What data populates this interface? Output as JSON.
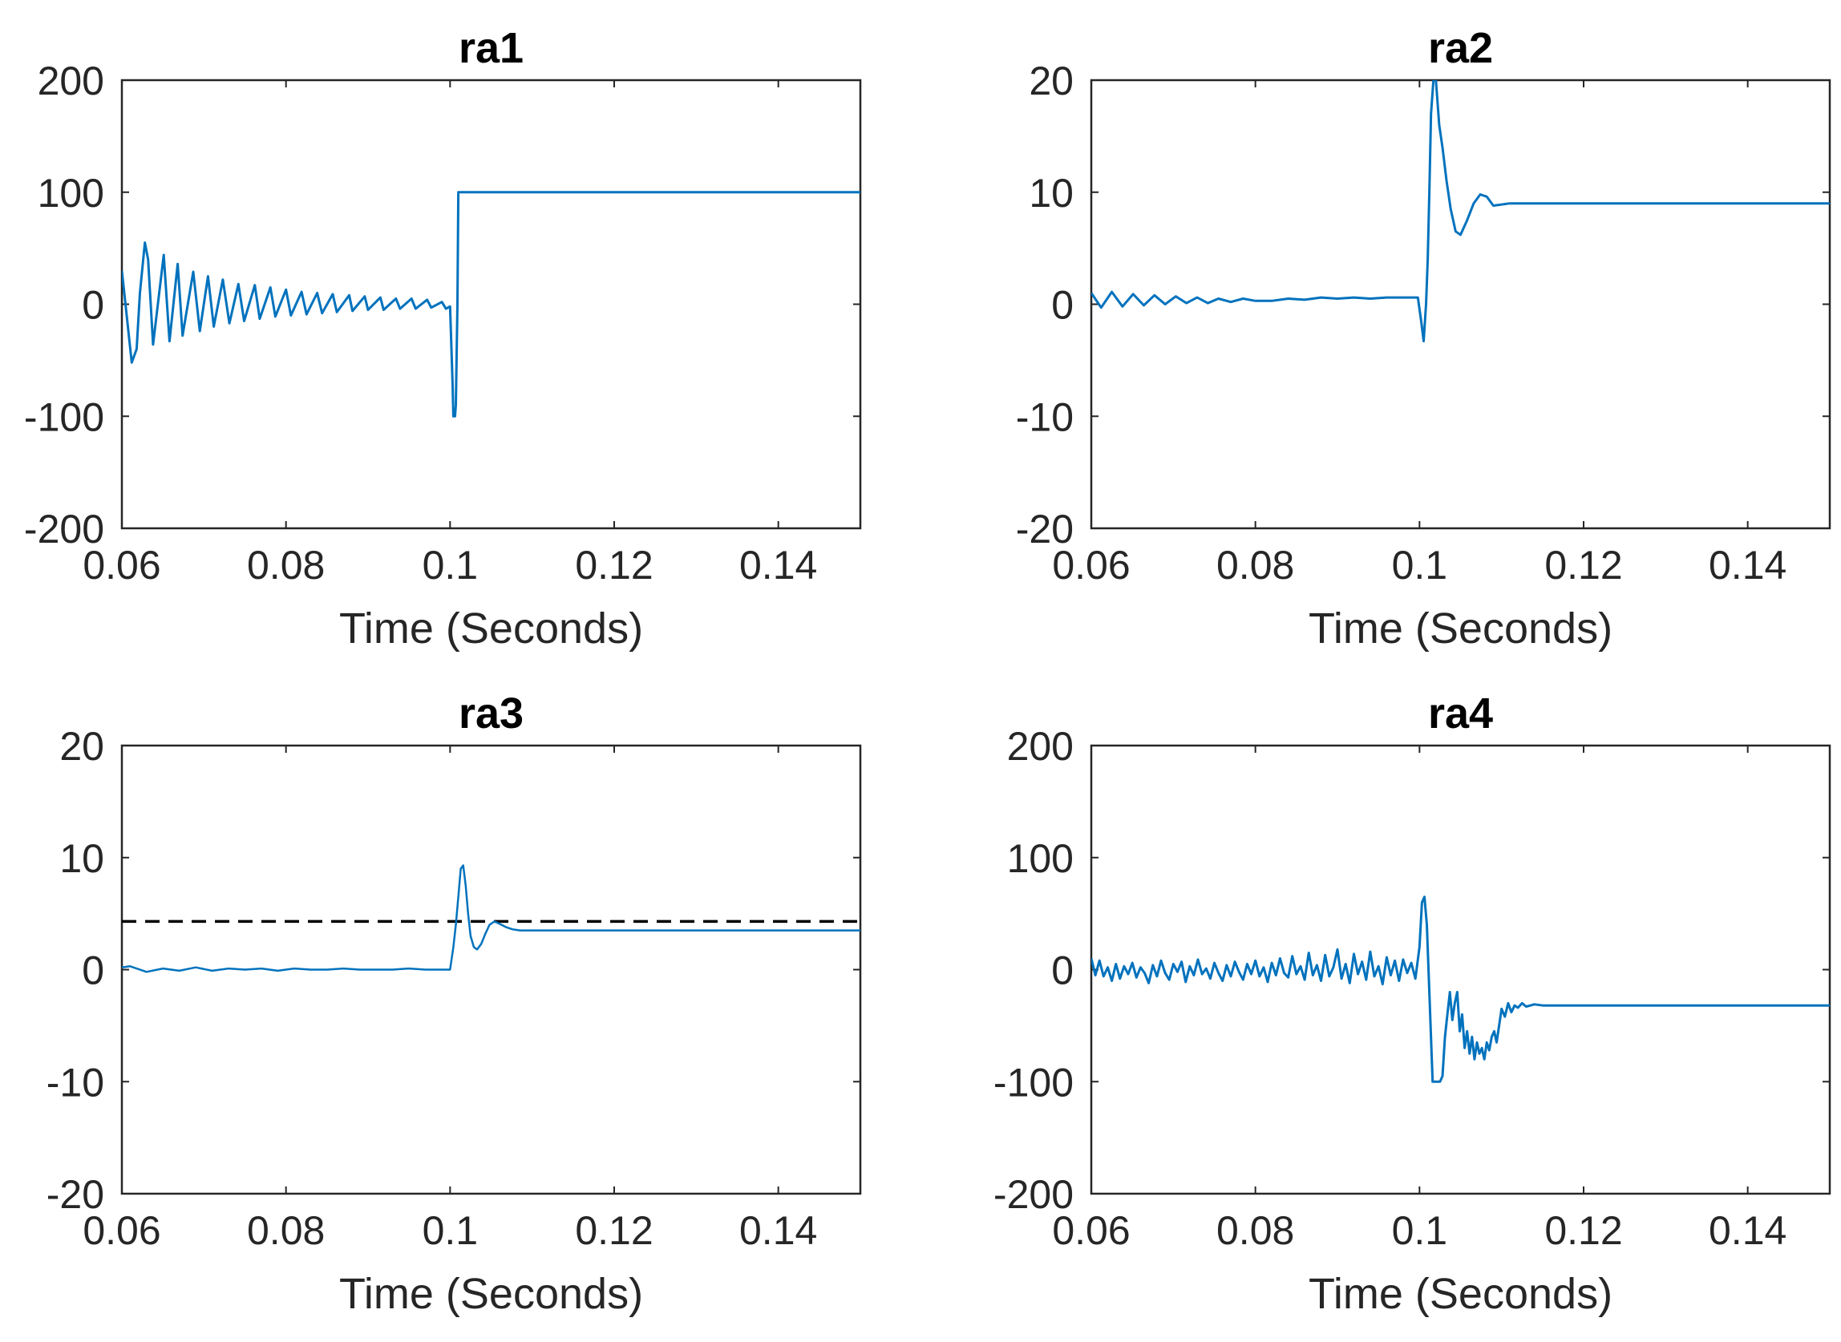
{
  "figure": {
    "line_color": "#0072BD",
    "reference_color": "#000000"
  },
  "chart_data": [
    {
      "type": "line",
      "title": "ra1",
      "xlabel": "Time (Seconds)",
      "ylabel": "",
      "xlim": [
        0.06,
        0.15
      ],
      "ylim": [
        -200,
        200
      ],
      "xticks": [
        0.06,
        0.08,
        0.1,
        0.12,
        0.14
      ],
      "xtick_labels": [
        "0.06",
        "0.08",
        "0.1",
        "0.12",
        "0.14"
      ],
      "yticks": [
        -200,
        -100,
        0,
        100,
        200
      ],
      "ytick_labels": [
        "-200",
        "-100",
        "0",
        "100",
        "200"
      ],
      "series": [
        {
          "name": "ra1",
          "x": [
            0.06,
            0.0612,
            0.0618,
            0.0622,
            0.0628,
            0.0632,
            0.0638,
            0.0651,
            0.0658,
            0.0668,
            0.0674,
            0.0687,
            0.0695,
            0.0705,
            0.0712,
            0.0723,
            0.0731,
            0.0742,
            0.0749,
            0.0762,
            0.0768,
            0.0781,
            0.0787,
            0.08,
            0.0806,
            0.0819,
            0.0825,
            0.0838,
            0.0844,
            0.0857,
            0.0862,
            0.0877,
            0.0881,
            0.0896,
            0.09,
            0.0915,
            0.0919,
            0.0934,
            0.0939,
            0.0953,
            0.0958,
            0.0972,
            0.0977,
            0.099,
            0.0995,
            0.1,
            0.1003,
            0.1004,
            0.1006,
            0.1007,
            0.1009,
            0.101,
            0.15
          ],
          "values": [
            30,
            -52,
            -40,
            10,
            55,
            40,
            -36,
            44,
            -33,
            36,
            -28,
            29,
            -24,
            25,
            -20,
            22,
            -17,
            18,
            -15,
            17,
            -13,
            15,
            -11,
            13,
            -10,
            11,
            -9,
            10,
            -8,
            9,
            -7,
            8,
            -6,
            7,
            -5,
            6,
            -5,
            5,
            -4,
            5,
            -4,
            4,
            -3,
            2,
            -4,
            -2,
            -70,
            -100,
            -100,
            -90,
            0,
            100,
            100
          ]
        }
      ]
    },
    {
      "type": "line",
      "title": "ra2",
      "xlabel": "Time (Seconds)",
      "ylabel": "",
      "xlim": [
        0.06,
        0.15
      ],
      "ylim": [
        -20,
        20
      ],
      "xticks": [
        0.06,
        0.08,
        0.1,
        0.12,
        0.14
      ],
      "xtick_labels": [
        "0.06",
        "0.08",
        "0.1",
        "0.12",
        "0.14"
      ],
      "yticks": [
        -20,
        -10,
        0,
        10,
        20
      ],
      "ytick_labels": [
        "-20",
        "-10",
        "0",
        "10",
        "20"
      ],
      "series": [
        {
          "name": "ra2",
          "x": [
            0.06,
            0.0612,
            0.0625,
            0.0638,
            0.0651,
            0.0664,
            0.0677,
            0.069,
            0.0703,
            0.0716,
            0.0729,
            0.0742,
            0.0755,
            0.077,
            0.0785,
            0.08,
            0.082,
            0.084,
            0.086,
            0.088,
            0.09,
            0.092,
            0.094,
            0.096,
            0.098,
            0.0998,
            0.1002,
            0.1005,
            0.1008,
            0.101,
            0.1012,
            0.1014,
            0.1017,
            0.102,
            0.1024,
            0.1028,
            0.1033,
            0.1038,
            0.1044,
            0.105,
            0.1058,
            0.1066,
            0.1074,
            0.1082,
            0.109,
            0.11,
            0.111,
            0.112,
            0.15
          ],
          "values": [
            1,
            -0.3,
            1.1,
            -0.2,
            0.9,
            -0.1,
            0.8,
            0,
            0.7,
            0.1,
            0.6,
            0.1,
            0.5,
            0.2,
            0.5,
            0.3,
            0.3,
            0.5,
            0.4,
            0.6,
            0.5,
            0.6,
            0.5,
            0.6,
            0.6,
            0.6,
            -1.5,
            -3.3,
            0,
            4,
            10,
            17,
            21,
            20,
            16,
            14,
            11,
            8.5,
            6.5,
            6.2,
            7.5,
            9,
            9.8,
            9.6,
            8.8,
            8.9,
            9,
            9,
            9
          ]
        }
      ]
    },
    {
      "type": "line",
      "title": "ra3",
      "xlabel": "Time (Seconds)",
      "ylabel": "",
      "xlim": [
        0.06,
        0.15
      ],
      "ylim": [
        -20,
        20
      ],
      "xticks": [
        0.06,
        0.08,
        0.1,
        0.12,
        0.14
      ],
      "xtick_labels": [
        "0.06",
        "0.08",
        "0.1",
        "0.12",
        "0.14"
      ],
      "yticks": [
        -20,
        -10,
        0,
        10,
        20
      ],
      "ytick_labels": [
        "-20",
        "-10",
        "0",
        "10",
        "20"
      ],
      "reference": {
        "y": 4.3,
        "style": "dashed"
      },
      "series": [
        {
          "name": "ra3",
          "x": [
            0.06,
            0.061,
            0.063,
            0.065,
            0.067,
            0.069,
            0.071,
            0.073,
            0.075,
            0.077,
            0.079,
            0.081,
            0.083,
            0.085,
            0.087,
            0.089,
            0.091,
            0.093,
            0.095,
            0.097,
            0.0995,
            0.1,
            0.1004,
            0.1007,
            0.101,
            0.1013,
            0.1016,
            0.1019,
            0.1022,
            0.1025,
            0.1029,
            0.1033,
            0.1038,
            0.1043,
            0.1048,
            0.1054,
            0.106,
            0.1068,
            0.1076,
            0.1085,
            0.1095,
            0.15
          ],
          "values": [
            0.2,
            0.3,
            -0.2,
            0.1,
            -0.1,
            0.2,
            -0.1,
            0.1,
            0,
            0.1,
            -0.1,
            0.1,
            0,
            0,
            0.1,
            0,
            0,
            0,
            0.1,
            0,
            0,
            0,
            2,
            4,
            6.5,
            9,
            9.3,
            7.5,
            5,
            3,
            2,
            1.8,
            2.3,
            3.2,
            4,
            4.3,
            4.1,
            3.8,
            3.6,
            3.5,
            3.5,
            3.5
          ]
        }
      ]
    },
    {
      "type": "line",
      "title": "ra4",
      "xlabel": "Time (Seconds)",
      "ylabel": "",
      "xlim": [
        0.06,
        0.15
      ],
      "ylim": [
        -200,
        200
      ],
      "xticks": [
        0.06,
        0.08,
        0.1,
        0.12,
        0.14
      ],
      "xtick_labels": [
        "0.06",
        "0.08",
        "0.1",
        "0.12",
        "0.14"
      ],
      "yticks": [
        -200,
        -100,
        0,
        100,
        200
      ],
      "ytick_labels": [
        "-200",
        "-100",
        "0",
        "100",
        "200"
      ],
      "series": [
        {
          "name": "ra4",
          "x": [
            0.06,
            0.0605,
            0.061,
            0.0615,
            0.062,
            0.0625,
            0.063,
            0.0635,
            0.064,
            0.0645,
            0.065,
            0.0655,
            0.066,
            0.0665,
            0.067,
            0.0675,
            0.068,
            0.0685,
            0.069,
            0.0695,
            0.07,
            0.0705,
            0.071,
            0.0715,
            0.072,
            0.0725,
            0.073,
            0.0735,
            0.074,
            0.0745,
            0.075,
            0.0755,
            0.076,
            0.0765,
            0.077,
            0.0775,
            0.078,
            0.0785,
            0.079,
            0.0795,
            0.08,
            0.0805,
            0.081,
            0.0815,
            0.082,
            0.0825,
            0.083,
            0.0835,
            0.084,
            0.0845,
            0.085,
            0.0855,
            0.086,
            0.0865,
            0.087,
            0.0875,
            0.088,
            0.0885,
            0.089,
            0.0895,
            0.09,
            0.0905,
            0.091,
            0.0915,
            0.092,
            0.0925,
            0.093,
            0.0935,
            0.094,
            0.0945,
            0.095,
            0.0955,
            0.096,
            0.0965,
            0.097,
            0.0975,
            0.098,
            0.0985,
            0.099,
            0.0995,
            0.1,
            0.1003,
            0.1006,
            0.1009,
            0.1012,
            0.1016,
            0.102,
            0.1025,
            0.1028,
            0.1031,
            0.1034,
            0.1037,
            0.104,
            0.1043,
            0.1046,
            0.1049,
            0.1052,
            0.1055,
            0.1058,
            0.1061,
            0.1064,
            0.1067,
            0.107,
            0.1073,
            0.1076,
            0.1079,
            0.1082,
            0.1085,
            0.1088,
            0.1091,
            0.1094,
            0.1097,
            0.11,
            0.1104,
            0.1108,
            0.1112,
            0.1116,
            0.112,
            0.1125,
            0.113,
            0.114,
            0.115,
            0.15
          ],
          "values": [
            10,
            -5,
            8,
            -6,
            2,
            -10,
            5,
            -8,
            3,
            -4,
            6,
            -7,
            2,
            -3,
            -12,
            4,
            -6,
            8,
            -3,
            -9,
            5,
            -2,
            7,
            -11,
            3,
            -5,
            9,
            -4,
            1,
            -8,
            6,
            -3,
            -10,
            4,
            -6,
            7,
            -2,
            -9,
            5,
            -4,
            8,
            -6,
            2,
            -11,
            6,
            -5,
            10,
            -3,
            -7,
            12,
            -4,
            3,
            -9,
            15,
            -5,
            4,
            -10,
            13,
            -6,
            2,
            18,
            -8,
            5,
            -12,
            14,
            -4,
            7,
            -9,
            16,
            -6,
            3,
            -13,
            11,
            -5,
            8,
            -10,
            9,
            -3,
            6,
            -8,
            20,
            60,
            65,
            40,
            -20,
            -100,
            -100,
            -100,
            -95,
            -60,
            -40,
            -20,
            -45,
            -30,
            -20,
            -55,
            -40,
            -70,
            -55,
            -75,
            -60,
            -80,
            -65,
            -75,
            -70,
            -80,
            -65,
            -72,
            -60,
            -55,
            -65,
            -50,
            -35,
            -42,
            -30,
            -38,
            -32,
            -34,
            -30,
            -33,
            -31,
            -32,
            -32
          ]
        }
      ]
    }
  ]
}
